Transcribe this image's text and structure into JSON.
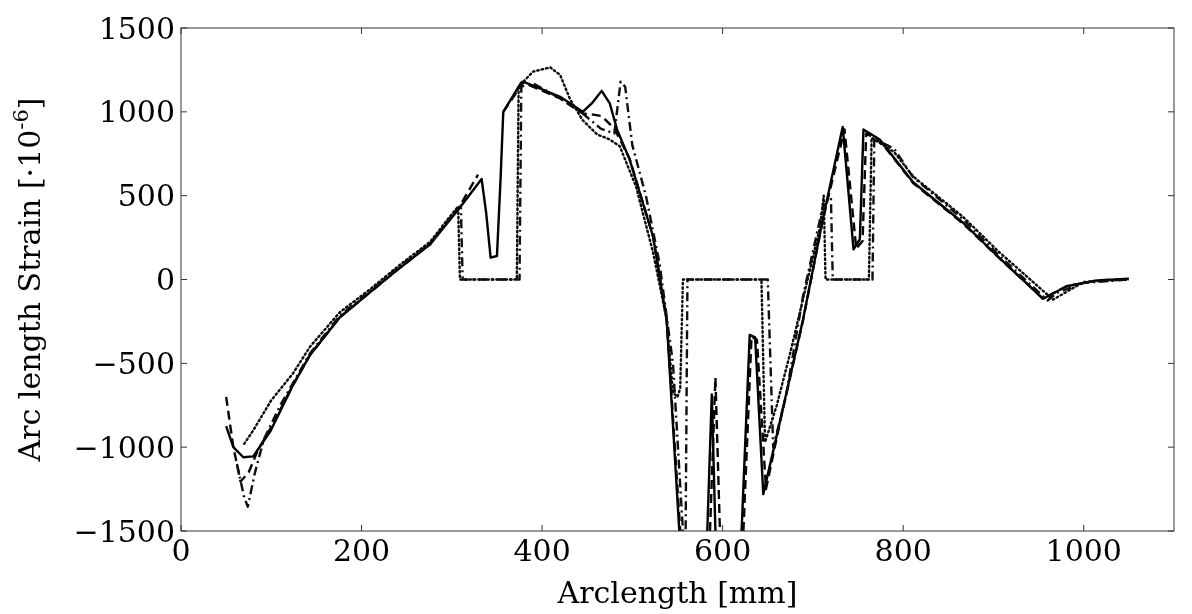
{
  "chart_data": {
    "type": "line",
    "xlabel": "Arclength [mm]",
    "ylabel": "Arc length Strain [·10$^{-6}$]",
    "xlim": [
      0,
      1100
    ],
    "ylim": [
      -1500,
      1500
    ],
    "xticks": [
      0,
      200,
      400,
      600,
      800,
      1000
    ],
    "yticks": [
      {
        "value": -1500,
        "label": "−1500"
      },
      {
        "value": -1000,
        "label": "−1000"
      },
      {
        "value": -500,
        "label": "−500"
      },
      0,
      500,
      1000,
      1500
    ],
    "grid": false,
    "marker": "none",
    "series": [
      {
        "color": "#000000",
        "line_style": "solid",
        "x": [
          50,
          58,
          69,
          80,
          99,
          124,
          143,
          176,
          209,
          243,
          276,
          309,
          333,
          338,
          343,
          350,
          354,
          357,
          377,
          379,
          420,
          445,
          455,
          466,
          475,
          483,
          497,
          523,
          538,
          552,
          null,
          583,
          588,
          592,
          null,
          621,
          630,
          636,
          645,
          664,
          689,
          711,
          733,
          745,
          752,
          756,
          774,
          811,
          866,
          905,
          955,
          981,
          1015,
          1050
        ],
        "values": [
          -875,
          -1000,
          -1060,
          -1055,
          -905,
          -630,
          -450,
          -225,
          -78,
          72,
          210,
          430,
          600,
          400,
          130,
          140,
          600,
          1000,
          1175,
          1180,
          1090,
          1000,
          1050,
          1125,
          1050,
          895,
          715,
          255,
          -240,
          -1500,
          null,
          -1500,
          -685,
          -1500,
          null,
          -1500,
          -330,
          -345,
          -1280,
          -835,
          -240,
          360,
          910,
          180,
          240,
          895,
          835,
          580,
          340,
          137,
          -115,
          -40,
          -5,
          5
        ]
      },
      {
        "color": "#050505",
        "line_style": "dashed",
        "x": [
          50,
          58,
          66,
          75,
          85,
          99,
          124,
          143,
          176,
          209,
          243,
          276,
          309,
          329,
          null,
          357,
          379,
          420,
          445,
          455,
          466,
          480,
          497,
          523,
          538,
          553,
          null,
          586,
          592,
          597,
          null,
          623,
          632,
          638,
          648,
          664,
          689,
          711,
          735,
          748,
          755,
          759,
          774,
          811,
          866,
          905,
          955,
          981,
          1015,
          1050
        ],
        "values": [
          -700,
          -1000,
          -1205,
          -1150,
          -1020,
          -890,
          -630,
          -450,
          -225,
          -78,
          72,
          210,
          440,
          625,
          null,
          1000,
          1175,
          1080,
          990,
          985,
          975,
          900,
          720,
          255,
          -240,
          -1500,
          null,
          -1500,
          -585,
          -1500,
          null,
          -1500,
          -340,
          -360,
          -1250,
          -840,
          -245,
          355,
          895,
          185,
          230,
          870,
          830,
          575,
          335,
          135,
          -115,
          -40,
          -5,
          0
        ]
      },
      {
        "color": "#0a0a0a",
        "line_style": "dotted",
        "x": [
          70,
          80,
          100,
          124,
          143,
          176,
          209,
          243,
          276,
          300,
          307,
          309,
          372,
          374,
          390,
          409,
          420,
          431,
          445,
          461,
          475,
          486,
          504,
          523,
          538,
          545,
          550,
          553,
          556,
          643,
          647,
          660,
          675,
          708,
          712,
          714,
          762,
          765,
          790,
          811,
          866,
          905,
          966,
          1000,
          1050
        ],
        "values": [
          -980,
          -900,
          -720,
          -560,
          -400,
          -195,
          -60,
          90,
          225,
          390,
          435,
          0,
          0,
          1150,
          1240,
          1265,
          1220,
          1075,
          950,
          865,
          835,
          795,
          555,
          160,
          -240,
          -675,
          -700,
          -650,
          0,
          0,
          -970,
          -750,
          -435,
          315,
          500,
          0,
          0,
          845,
          760,
          615,
          375,
          170,
          -120,
          -15,
          0
        ]
      },
      {
        "color": "#0f0f0f",
        "line_style": "dashdot",
        "x": [
          62,
          70,
          74,
          82,
          92,
          110,
          143,
          176,
          209,
          243,
          276,
          300,
          310,
          312,
          375,
          377,
          390,
          420,
          445,
          465,
          480,
          487,
          492,
          500,
          515,
          530,
          545,
          556,
          559,
          561,
          650,
          656,
          670,
          689,
          711,
          720,
          722,
          766,
          768,
          790,
          811,
          866,
          905,
          960,
          970,
          1000,
          1050
        ],
        "values": [
          -1100,
          -1300,
          -1355,
          -1150,
          -950,
          -750,
          -440,
          -215,
          -70,
          80,
          215,
          380,
          440,
          0,
          0,
          1150,
          1170,
          1080,
          990,
          900,
          870,
          1180,
          1150,
          800,
          500,
          100,
          -500,
          -1500,
          -1500,
          0,
          0,
          -1000,
          -700,
          -100,
          435,
          480,
          0,
          0,
          840,
          780,
          610,
          360,
          150,
          -125,
          -80,
          -20,
          0
        ]
      }
    ]
  }
}
